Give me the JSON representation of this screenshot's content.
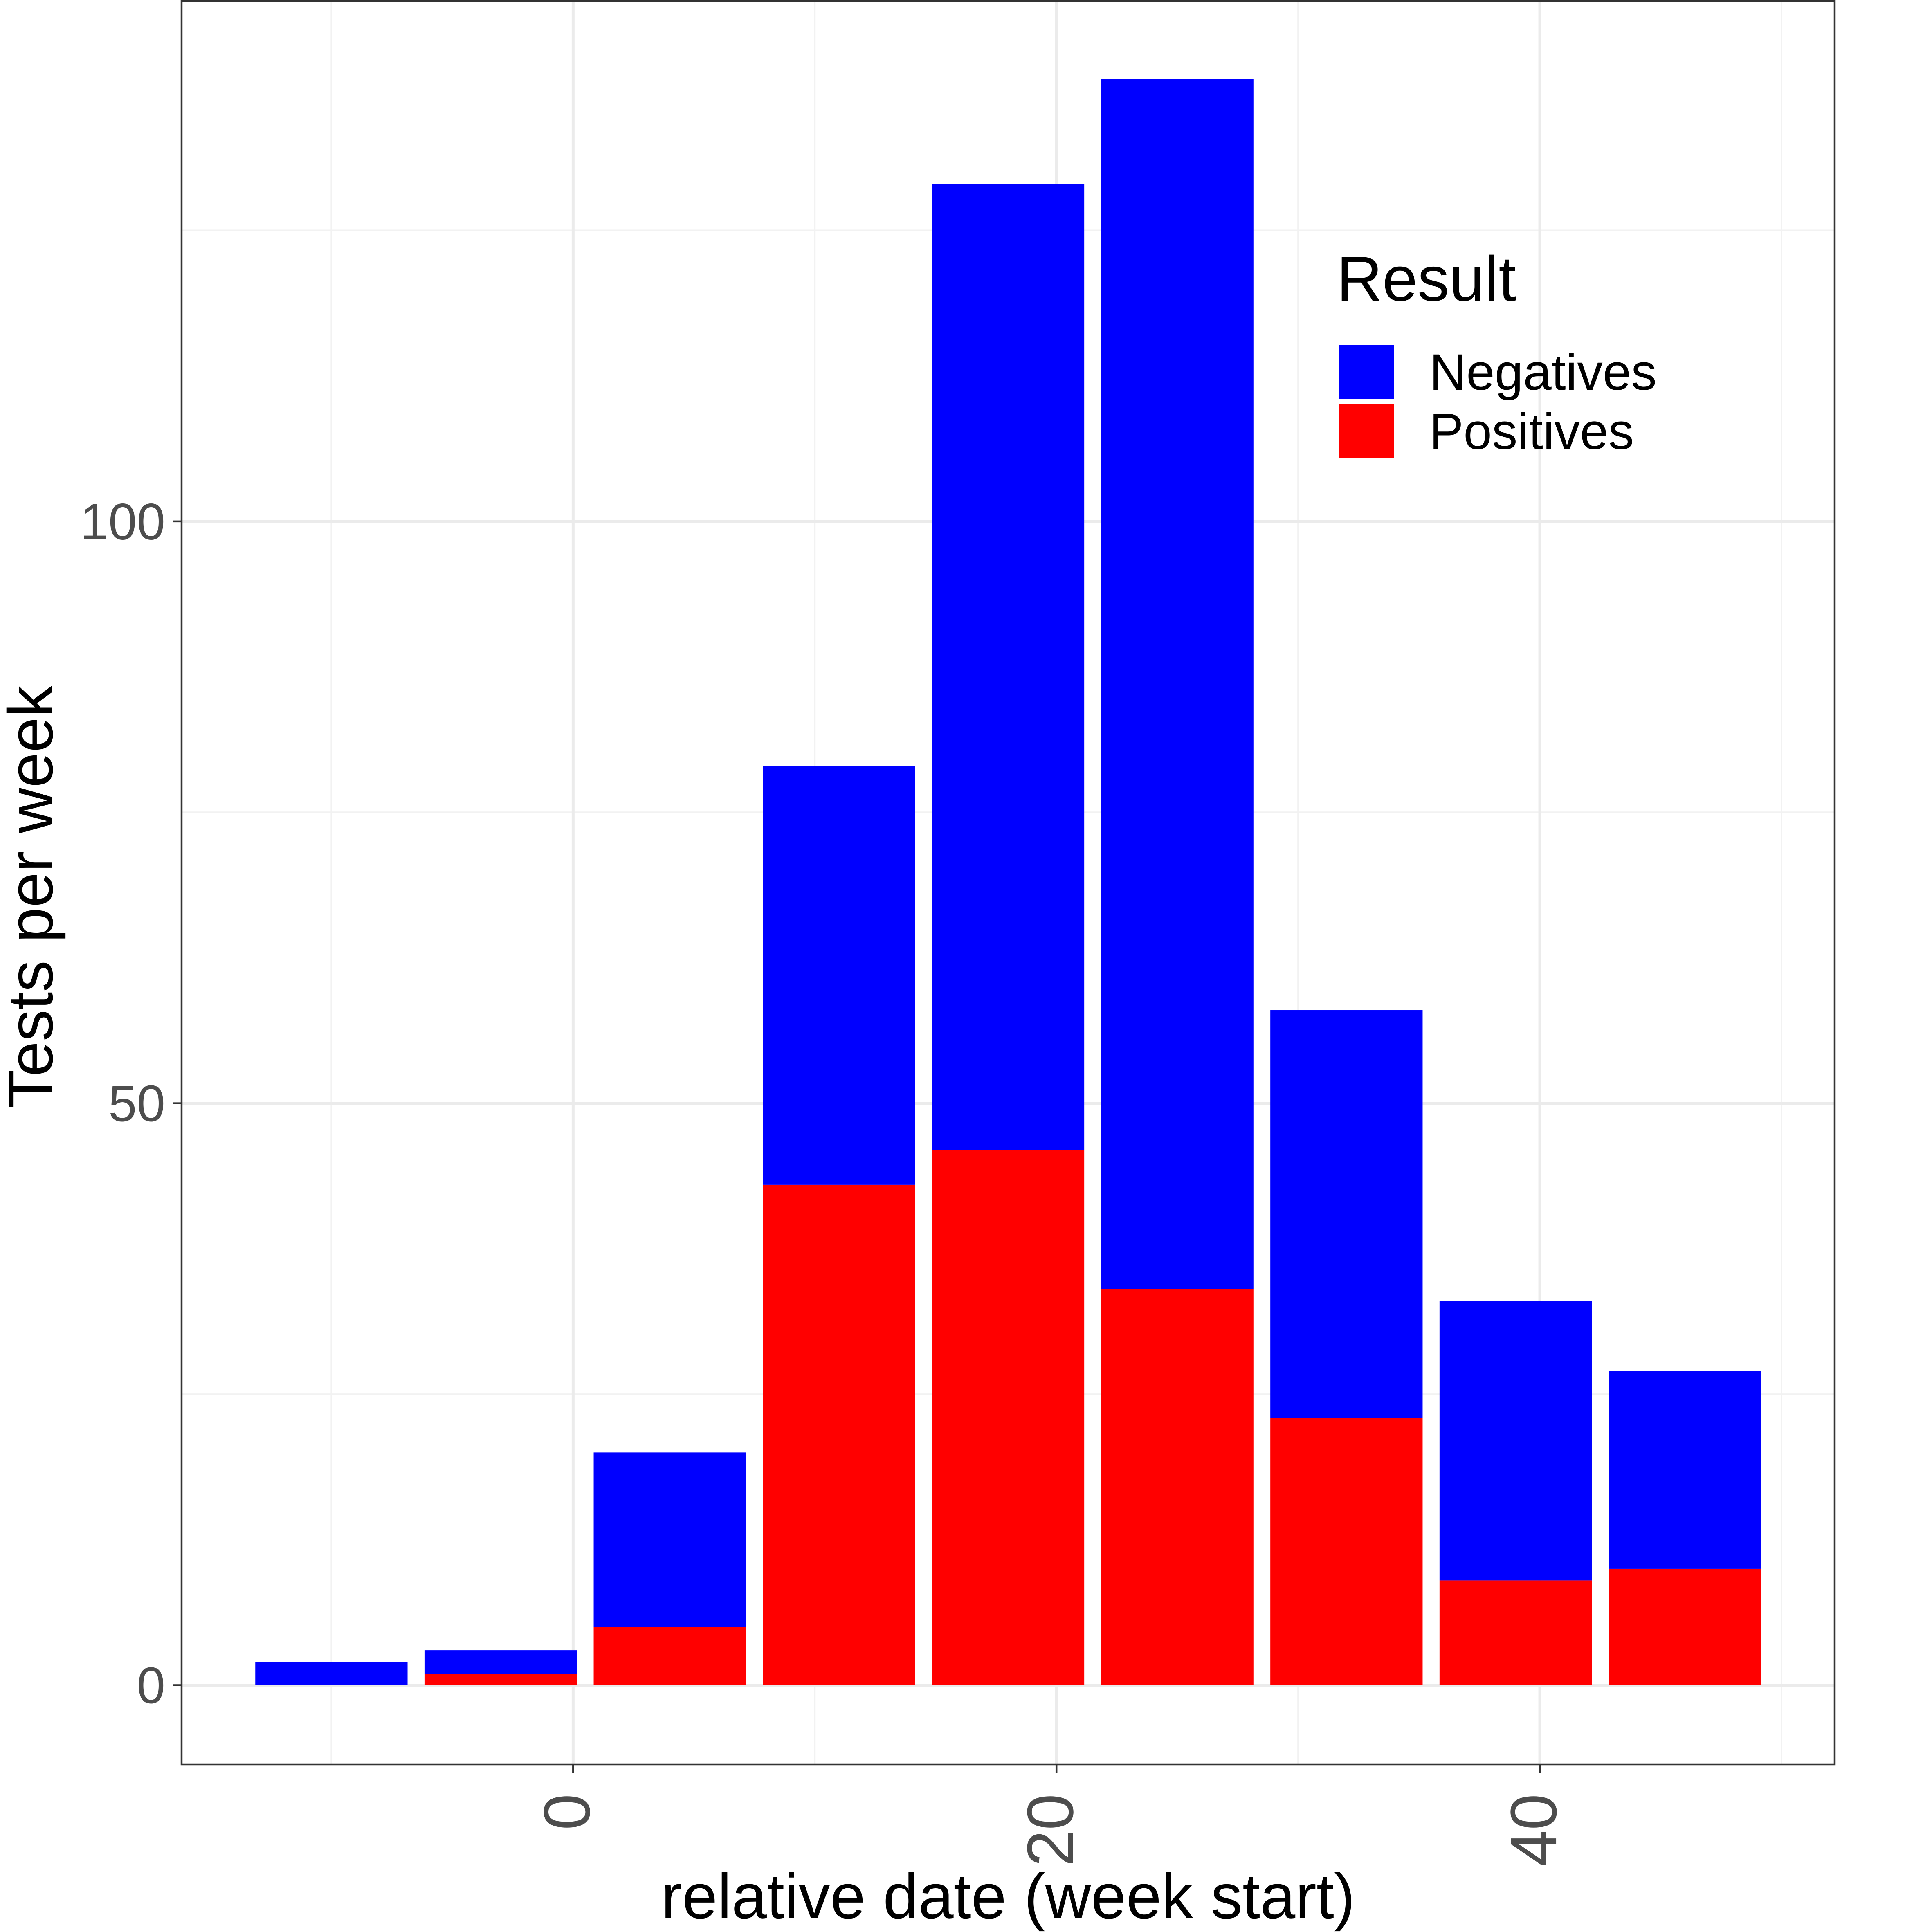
{
  "chart_data": {
    "type": "bar",
    "stacked": true,
    "bar_width_weeks": 6.3,
    "x": [
      -10,
      -3,
      4,
      11,
      18,
      25,
      32,
      39,
      46
    ],
    "series": [
      {
        "name": "Negatives",
        "color": "#0000FF",
        "values": [
          2,
          2,
          15,
          36,
          83,
          104,
          35,
          24,
          17
        ]
      },
      {
        "name": "Positives",
        "color": "#FF0000",
        "values": [
          0,
          1,
          5,
          43,
          46,
          34,
          23,
          9,
          10
        ]
      }
    ],
    "xlabel": "relative date (week start)",
    "ylabel": "Tests per week",
    "xlim": [
      -16.2,
      52.2
    ],
    "ylim": [
      -6.8,
      144.8
    ],
    "x_ticks": [
      0,
      20,
      40
    ],
    "x_minor_ticks": [
      -10,
      10,
      30,
      50
    ],
    "y_ticks": [
      0,
      50,
      100
    ],
    "y_minor_ticks": [
      25,
      75,
      125
    ],
    "grid": true,
    "legend": {
      "title": "Result",
      "position": "top-right",
      "entries": [
        "Negatives",
        "Positives"
      ]
    }
  }
}
